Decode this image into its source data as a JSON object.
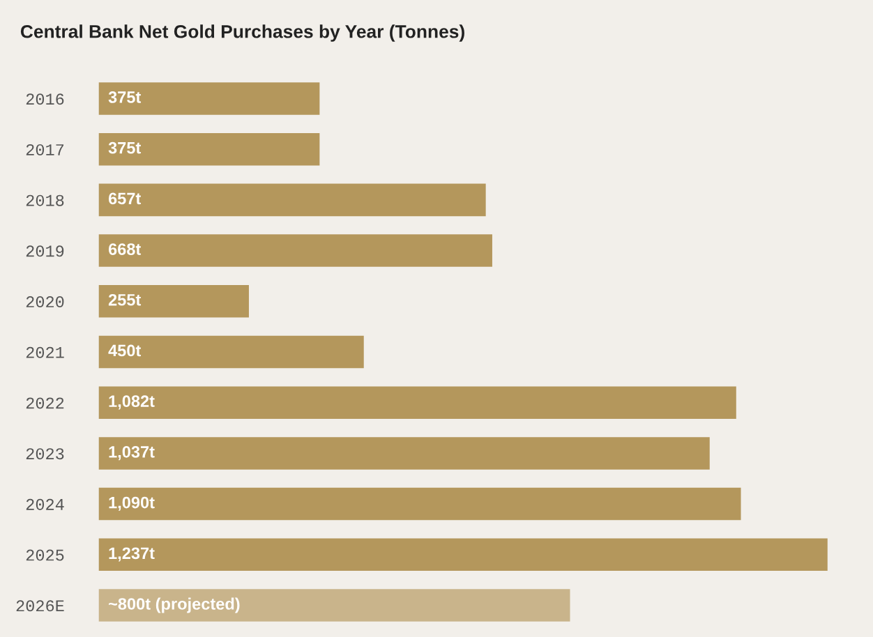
{
  "chart_data": {
    "type": "bar",
    "orientation": "horizontal",
    "title": "Central Bank Net Gold Purchases by Year (Tonnes)",
    "categories": [
      "2016",
      "2017",
      "2018",
      "2019",
      "2020",
      "2021",
      "2022",
      "2023",
      "2024",
      "2025",
      "2026E"
    ],
    "values": [
      375,
      375,
      657,
      668,
      255,
      450,
      1082,
      1037,
      1090,
      1237,
      800
    ],
    "value_labels": [
      "375t",
      "375t",
      "657t",
      "668t",
      "255t",
      "450t",
      "1,082t",
      "1,037t",
      "1,090t",
      "1,237t",
      "~800t (projected)"
    ],
    "colors": [
      "#b4975c",
      "#b4975c",
      "#b4975c",
      "#b4975c",
      "#b4975c",
      "#b4975c",
      "#b4975c",
      "#b4975c",
      "#b4975c",
      "#b4975c",
      "#c9b48b"
    ],
    "grid": false,
    "legend": false
  }
}
